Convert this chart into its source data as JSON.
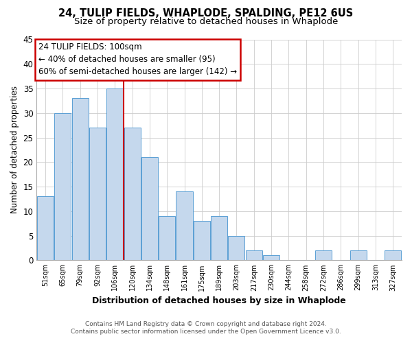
{
  "title": "24, TULIP FIELDS, WHAPLODE, SPALDING, PE12 6US",
  "subtitle": "Size of property relative to detached houses in Whaplode",
  "xlabel": "Distribution of detached houses by size in Whaplode",
  "ylabel": "Number of detached properties",
  "bin_labels": [
    "51sqm",
    "65sqm",
    "79sqm",
    "92sqm",
    "106sqm",
    "120sqm",
    "134sqm",
    "148sqm",
    "161sqm",
    "175sqm",
    "189sqm",
    "203sqm",
    "217sqm",
    "230sqm",
    "244sqm",
    "258sqm",
    "272sqm",
    "286sqm",
    "299sqm",
    "313sqm",
    "327sqm"
  ],
  "bar_heights": [
    13,
    30,
    33,
    27,
    35,
    27,
    21,
    9,
    14,
    8,
    9,
    5,
    2,
    1,
    0,
    0,
    2,
    0,
    2,
    0,
    2
  ],
  "bar_color": "#c5d8ed",
  "bar_edge_color": "#5a9fd4",
  "ylim": [
    0,
    45
  ],
  "yticks": [
    0,
    5,
    10,
    15,
    20,
    25,
    30,
    35,
    40,
    45
  ],
  "annotation_title": "24 TULIP FIELDS: 100sqm",
  "annotation_line1": "← 40% of detached houses are smaller (95)",
  "annotation_line2": "60% of semi-detached houses are larger (142) →",
  "annotation_box_color": "#ffffff",
  "annotation_box_edge": "#cc0000",
  "subject_line_color": "#cc0000",
  "footer1": "Contains HM Land Registry data © Crown copyright and database right 2024.",
  "footer2": "Contains public sector information licensed under the Open Government Licence v3.0.",
  "background_color": "#ffffff",
  "grid_color": "#cccccc",
  "title_fontsize": 10.5,
  "subtitle_fontsize": 9.5,
  "subject_line_xindex": 4.5
}
